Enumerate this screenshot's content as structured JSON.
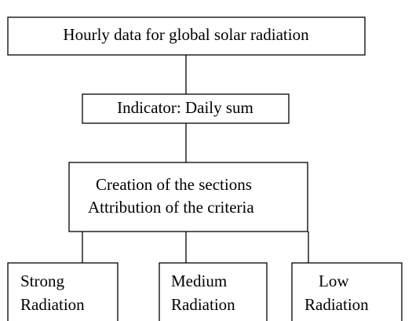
{
  "nodes": [
    {
      "lines": [
        "Hourly data for global solar radiation"
      ]
    },
    {
      "lines": [
        "Indicator: Daily sum"
      ]
    },
    {
      "lines": [
        "Creation of the sections",
        "Attribution of the criteria"
      ]
    },
    {
      "lines": [
        "Strong",
        "Radiation"
      ]
    },
    {
      "lines": [
        "Medium",
        "Radiation"
      ]
    },
    {
      "lines": [
        "Low",
        "Radiation"
      ]
    }
  ]
}
